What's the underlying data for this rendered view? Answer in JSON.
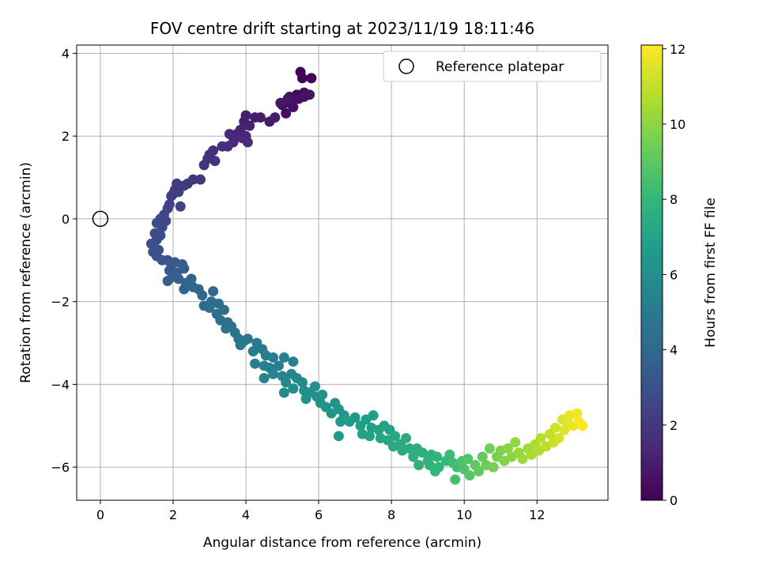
{
  "chart_data": {
    "type": "scatter",
    "title": "FOV centre drift starting at 2023/11/19 18:11:46",
    "xlabel": "Angular distance from reference (arcmin)",
    "ylabel": "Rotation from reference (arcmin)",
    "xlim": [
      -0.65,
      13.95
    ],
    "ylim": [
      -6.8,
      4.2
    ],
    "x_ticks": [
      0,
      2,
      4,
      6,
      8,
      10,
      12
    ],
    "y_ticks": [
      -6,
      -4,
      -2,
      0,
      2,
      4
    ],
    "grid": true,
    "legend": {
      "entries": [
        "Reference platepar"
      ],
      "placement": "top-right"
    },
    "reference_point": {
      "name": "Reference platepar",
      "x": 0,
      "y": 0,
      "marker": "open-circle"
    },
    "colorbar": {
      "label": "Hours from first FF file",
      "range": [
        0,
        12.1
      ],
      "ticks": [
        0,
        2,
        4,
        6,
        8,
        10,
        12
      ],
      "colormap": "viridis"
    },
    "colormap_stops": [
      "#440154",
      "#482878",
      "#3e4989",
      "#31688e",
      "#26828e",
      "#1f9e89",
      "#35b779",
      "#6ece58",
      "#b5de2b",
      "#fde725"
    ],
    "series": [
      {
        "points": [
          [
            5.5,
            3.55,
            0.0
          ],
          [
            5.55,
            3.4,
            0.1
          ],
          [
            5.8,
            3.4,
            0.15
          ],
          [
            5.4,
            3.0,
            0.2
          ],
          [
            5.6,
            3.05,
            0.25
          ],
          [
            5.2,
            2.8,
            0.3
          ],
          [
            5.0,
            2.75,
            0.35
          ],
          [
            5.1,
            2.55,
            0.4
          ],
          [
            5.3,
            2.7,
            0.45
          ],
          [
            5.45,
            2.9,
            0.5
          ],
          [
            5.6,
            2.95,
            0.55
          ],
          [
            5.2,
            2.95,
            0.6
          ],
          [
            5.75,
            3.0,
            0.65
          ],
          [
            4.95,
            2.8,
            0.7
          ],
          [
            5.15,
            2.9,
            0.75
          ],
          [
            4.8,
            2.45,
            0.85
          ],
          [
            4.65,
            2.35,
            0.9
          ],
          [
            4.4,
            2.45,
            0.95
          ],
          [
            4.25,
            2.45,
            1.0
          ],
          [
            4.0,
            2.5,
            1.05
          ],
          [
            3.95,
            2.35,
            1.1
          ],
          [
            4.1,
            2.25,
            1.15
          ],
          [
            3.85,
            2.15,
            1.2
          ],
          [
            3.75,
            2.05,
            1.25
          ],
          [
            4.0,
            2.0,
            1.3
          ],
          [
            3.55,
            2.05,
            1.35
          ],
          [
            3.9,
            1.95,
            1.4
          ],
          [
            3.65,
            1.85,
            1.45
          ],
          [
            4.05,
            1.85,
            1.5
          ],
          [
            3.5,
            1.75,
            1.55
          ],
          [
            3.35,
            1.75,
            1.6
          ],
          [
            3.1,
            1.65,
            1.65
          ],
          [
            3.0,
            1.55,
            1.7
          ],
          [
            3.15,
            1.4,
            1.75
          ],
          [
            2.95,
            1.45,
            1.8
          ],
          [
            2.85,
            1.3,
            1.85
          ],
          [
            2.75,
            0.95,
            1.9
          ],
          [
            2.55,
            0.95,
            1.95
          ],
          [
            2.4,
            0.85,
            2.0
          ],
          [
            2.3,
            0.8,
            2.05
          ],
          [
            2.1,
            0.85,
            2.1
          ],
          [
            2.05,
            0.7,
            2.15
          ],
          [
            2.0,
            0.6,
            2.2
          ],
          [
            1.95,
            0.55,
            2.25
          ],
          [
            2.15,
            0.65,
            2.3
          ],
          [
            1.9,
            0.35,
            2.4
          ],
          [
            2.2,
            0.3,
            2.45
          ],
          [
            1.85,
            0.25,
            2.5
          ],
          [
            1.75,
            0.1,
            2.55
          ],
          [
            1.65,
            0.0,
            2.6
          ],
          [
            1.8,
            -0.05,
            2.65
          ],
          [
            1.55,
            -0.1,
            2.7
          ],
          [
            1.7,
            -0.2,
            2.75
          ],
          [
            1.5,
            -0.35,
            2.8
          ],
          [
            1.65,
            -0.4,
            2.85
          ],
          [
            1.55,
            -0.5,
            2.9
          ],
          [
            1.4,
            -0.6,
            2.95
          ],
          [
            1.5,
            -0.7,
            3.0
          ],
          [
            1.45,
            -0.8,
            3.05
          ],
          [
            1.6,
            -0.75,
            3.1
          ],
          [
            1.55,
            -0.9,
            3.15
          ],
          [
            1.7,
            -1.0,
            3.25
          ],
          [
            1.85,
            -1.0,
            3.3
          ],
          [
            1.95,
            -1.1,
            3.35
          ],
          [
            2.05,
            -1.05,
            3.4
          ],
          [
            2.25,
            -1.1,
            3.45
          ],
          [
            1.9,
            -1.25,
            3.5
          ],
          [
            2.1,
            -1.3,
            3.55
          ],
          [
            2.3,
            -1.2,
            3.6
          ],
          [
            2.0,
            -1.4,
            3.65
          ],
          [
            1.85,
            -1.5,
            3.7
          ],
          [
            2.15,
            -1.45,
            3.75
          ],
          [
            2.35,
            -1.55,
            3.8
          ],
          [
            2.5,
            -1.45,
            3.85
          ],
          [
            2.3,
            -1.7,
            3.9
          ],
          [
            2.55,
            -1.65,
            3.95
          ],
          [
            2.7,
            -1.7,
            4.0
          ],
          [
            2.8,
            -1.85,
            4.05
          ],
          [
            3.1,
            -1.75,
            4.1
          ],
          [
            3.05,
            -2.0,
            4.15
          ],
          [
            2.85,
            -2.1,
            4.2
          ],
          [
            3.0,
            -2.15,
            4.25
          ],
          [
            3.25,
            -2.05,
            4.3
          ],
          [
            3.2,
            -2.3,
            4.35
          ],
          [
            3.4,
            -2.2,
            4.4
          ],
          [
            3.3,
            -2.45,
            4.45
          ],
          [
            3.5,
            -2.5,
            4.5
          ],
          [
            3.6,
            -2.6,
            4.55
          ],
          [
            3.45,
            -2.65,
            4.6
          ],
          [
            3.7,
            -2.75,
            4.65
          ],
          [
            3.8,
            -2.9,
            4.7
          ],
          [
            3.95,
            -2.95,
            4.75
          ],
          [
            4.05,
            -2.9,
            4.8
          ],
          [
            3.85,
            -3.05,
            4.85
          ],
          [
            4.3,
            -3.0,
            4.9
          ],
          [
            4.45,
            -3.15,
            4.95
          ],
          [
            4.2,
            -3.2,
            5.0
          ],
          [
            4.55,
            -3.3,
            5.05
          ],
          [
            4.75,
            -3.35,
            5.1
          ],
          [
            4.5,
            -3.55,
            5.15
          ],
          [
            4.25,
            -3.5,
            5.2
          ],
          [
            4.65,
            -3.6,
            5.25
          ],
          [
            4.9,
            -3.55,
            5.3
          ],
          [
            5.05,
            -3.35,
            5.35
          ],
          [
            5.3,
            -3.45,
            5.4
          ],
          [
            4.75,
            -3.75,
            5.45
          ],
          [
            4.5,
            -3.85,
            5.5
          ],
          [
            5.0,
            -3.8,
            5.55
          ],
          [
            5.25,
            -3.75,
            5.6
          ],
          [
            5.1,
            -3.95,
            5.65
          ],
          [
            5.4,
            -3.85,
            5.7
          ],
          [
            5.55,
            -3.95,
            5.75
          ],
          [
            5.3,
            -4.1,
            5.8
          ],
          [
            5.05,
            -4.2,
            5.85
          ],
          [
            5.6,
            -4.15,
            5.9
          ],
          [
            5.9,
            -4.05,
            5.95
          ],
          [
            5.75,
            -4.2,
            6.0
          ],
          [
            5.95,
            -4.3,
            6.05
          ],
          [
            5.65,
            -4.35,
            6.1
          ],
          [
            6.1,
            -4.25,
            6.15
          ],
          [
            6.05,
            -4.45,
            6.2
          ],
          [
            6.2,
            -4.55,
            6.25
          ],
          [
            6.45,
            -4.45,
            6.3
          ],
          [
            6.55,
            -4.6,
            6.35
          ],
          [
            6.35,
            -4.7,
            6.4
          ],
          [
            6.7,
            -4.75,
            6.45
          ],
          [
            6.6,
            -4.9,
            6.5
          ],
          [
            6.55,
            -5.25,
            6.55
          ],
          [
            6.85,
            -4.9,
            6.6
          ],
          [
            7.0,
            -4.8,
            6.65
          ],
          [
            7.15,
            -5.0,
            6.7
          ],
          [
            7.3,
            -4.85,
            6.75
          ],
          [
            7.5,
            -4.75,
            6.8
          ],
          [
            7.45,
            -5.05,
            6.85
          ],
          [
            7.2,
            -5.2,
            6.9
          ],
          [
            7.4,
            -5.25,
            6.95
          ],
          [
            7.65,
            -5.1,
            7.0
          ],
          [
            7.8,
            -5.0,
            7.05
          ],
          [
            7.95,
            -5.1,
            7.1
          ],
          [
            7.7,
            -5.3,
            7.15
          ],
          [
            7.9,
            -5.35,
            7.2
          ],
          [
            8.1,
            -5.25,
            7.25
          ],
          [
            8.05,
            -5.5,
            7.3
          ],
          [
            8.25,
            -5.45,
            7.35
          ],
          [
            8.4,
            -5.3,
            7.4
          ],
          [
            8.3,
            -5.6,
            7.45
          ],
          [
            8.5,
            -5.55,
            7.5
          ],
          [
            8.7,
            -5.55,
            7.55
          ],
          [
            8.6,
            -5.75,
            7.6
          ],
          [
            8.85,
            -5.65,
            7.65
          ],
          [
            8.75,
            -5.95,
            7.7
          ],
          [
            9.0,
            -5.85,
            7.75
          ],
          [
            9.1,
            -5.7,
            7.8
          ],
          [
            9.25,
            -5.75,
            7.85
          ],
          [
            9.05,
            -5.95,
            7.9
          ],
          [
            9.3,
            -6.0,
            7.95
          ],
          [
            9.2,
            -6.1,
            8.0
          ],
          [
            9.5,
            -5.85,
            8.1
          ],
          [
            9.6,
            -5.7,
            8.2
          ],
          [
            9.7,
            -5.9,
            8.3
          ],
          [
            9.8,
            -6.0,
            8.4
          ],
          [
            9.75,
            -6.3,
            8.5
          ],
          [
            9.95,
            -5.85,
            8.6
          ],
          [
            10.0,
            -6.05,
            8.7
          ],
          [
            10.1,
            -5.8,
            8.8
          ],
          [
            10.15,
            -6.2,
            8.9
          ],
          [
            10.3,
            -5.95,
            9.0
          ],
          [
            10.4,
            -6.1,
            9.1
          ],
          [
            10.5,
            -5.75,
            9.2
          ],
          [
            10.6,
            -5.95,
            9.3
          ],
          [
            10.7,
            -5.55,
            9.4
          ],
          [
            10.8,
            -6.0,
            9.5
          ],
          [
            10.9,
            -5.75,
            9.6
          ],
          [
            11.0,
            -5.6,
            9.7
          ],
          [
            11.1,
            -5.85,
            9.8
          ],
          [
            11.2,
            -5.55,
            9.9
          ],
          [
            11.3,
            -5.75,
            10.0
          ],
          [
            11.4,
            -5.4,
            10.1
          ],
          [
            11.5,
            -5.65,
            10.2
          ],
          [
            11.6,
            -5.8,
            10.3
          ],
          [
            11.75,
            -5.55,
            10.4
          ],
          [
            11.85,
            -5.7,
            10.5
          ],
          [
            11.95,
            -5.45,
            10.6
          ],
          [
            12.05,
            -5.6,
            10.7
          ],
          [
            12.1,
            -5.3,
            10.8
          ],
          [
            12.25,
            -5.5,
            10.9
          ],
          [
            12.35,
            -5.2,
            11.0
          ],
          [
            12.45,
            -5.4,
            11.1
          ],
          [
            12.5,
            -5.05,
            11.2
          ],
          [
            12.6,
            -5.3,
            11.3
          ],
          [
            12.7,
            -4.85,
            11.4
          ],
          [
            12.75,
            -5.1,
            11.5
          ],
          [
            12.85,
            -4.95,
            11.6
          ],
          [
            12.9,
            -4.75,
            11.7
          ],
          [
            13.0,
            -5.0,
            11.8
          ],
          [
            13.1,
            -4.7,
            11.9
          ],
          [
            13.15,
            -4.9,
            12.0
          ],
          [
            13.25,
            -5.0,
            12.05
          ]
        ]
      }
    ]
  }
}
